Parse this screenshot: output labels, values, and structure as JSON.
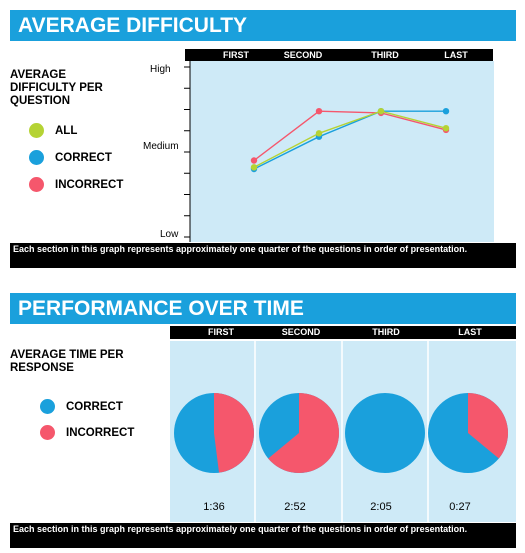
{
  "section1": {
    "title": "AVERAGE DIFFICULTY",
    "columns": [
      "FIRST",
      "SECOND",
      "THIRD",
      "LAST"
    ],
    "side_title": "AVERAGE DIFFICULTY PER QUESTION",
    "legend": [
      {
        "label": "ALL",
        "color": "#b5d334"
      },
      {
        "label": "CORRECT",
        "color": "#1aa0dc"
      },
      {
        "label": "INCORRECT",
        "color": "#f5576c"
      }
    ],
    "footer": "Each section in this graph represents approximately one quarter of the questions in order of presentation."
  },
  "section2": {
    "title": "PERFORMANCE OVER TIME",
    "columns": [
      "FIRST",
      "SECOND",
      "THIRD",
      "LAST"
    ],
    "side_title": "AVERAGE TIME PER RESPONSE",
    "legend": [
      {
        "label": "CORRECT",
        "color": "#1aa0dc"
      },
      {
        "label": "INCORRECT",
        "color": "#f5576c"
      }
    ],
    "times": [
      "1:36",
      "2:52",
      "2:05",
      "0:27"
    ],
    "footer": "Each section in this graph represents approximately one quarter of the questions in order of presentation."
  },
  "chart_data": [
    {
      "type": "line",
      "title": "AVERAGE DIFFICULTY",
      "categories": [
        "FIRST",
        "SECOND",
        "THIRD",
        "LAST"
      ],
      "y_ticks": [
        "High",
        "Medium",
        "Low"
      ],
      "ylim": [
        0,
        1
      ],
      "series": [
        {
          "name": "ALL",
          "color": "#b5d334",
          "values": [
            0.41,
            0.61,
            0.74,
            0.64
          ]
        },
        {
          "name": "CORRECT",
          "color": "#1aa0dc",
          "values": [
            0.4,
            0.59,
            0.74,
            0.74
          ]
        },
        {
          "name": "INCORRECT",
          "color": "#f5576c",
          "values": [
            0.45,
            0.74,
            0.73,
            0.63
          ]
        }
      ]
    },
    {
      "type": "pie",
      "title": "PERFORMANCE OVER TIME",
      "categories": [
        "FIRST",
        "SECOND",
        "THIRD",
        "LAST"
      ],
      "series": [
        {
          "name": "CORRECT",
          "color": "#1aa0dc",
          "values": [
            0.52,
            0.36,
            1.0,
            0.64
          ]
        },
        {
          "name": "INCORRECT",
          "color": "#f5576c",
          "values": [
            0.48,
            0.64,
            0.0,
            0.36
          ]
        }
      ],
      "labels": [
        "1:36",
        "2:52",
        "2:05",
        "0:27"
      ]
    }
  ]
}
